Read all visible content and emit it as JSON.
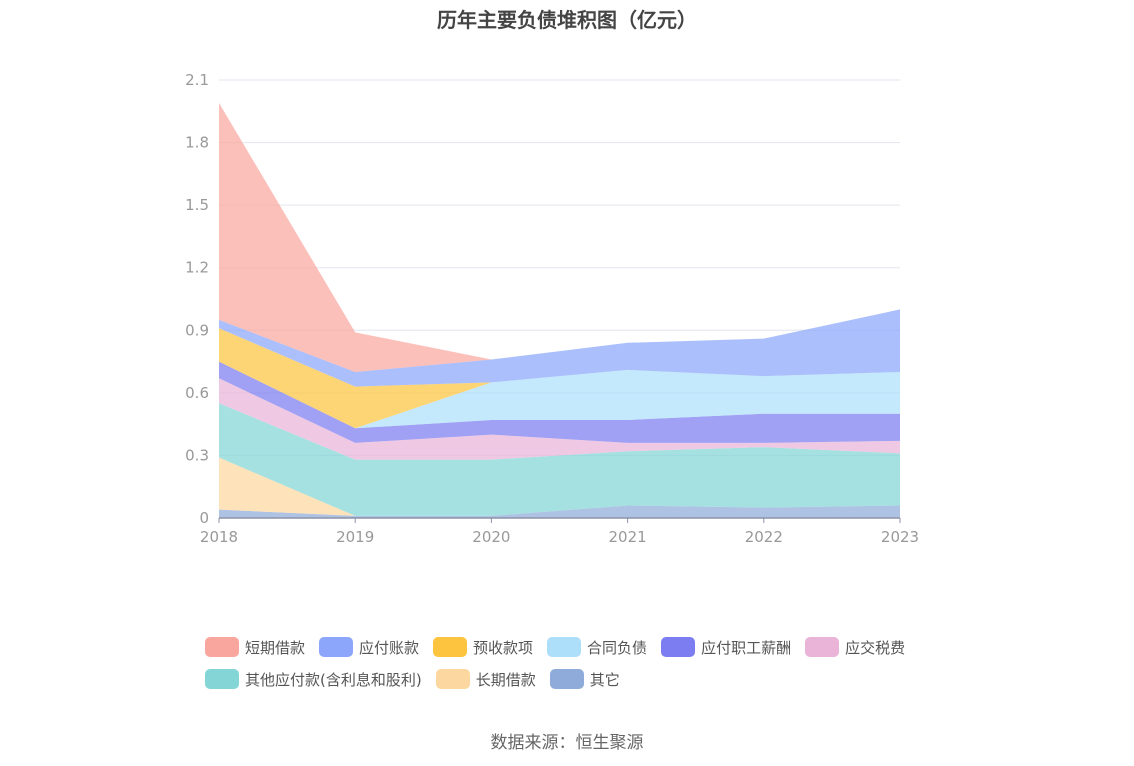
{
  "title": "历年主要负债堆积图（亿元）",
  "source": "数据来源：恒生聚源",
  "colors": {
    "短期借款": "#f9a79e",
    "应付账款": "#8ba6fb",
    "预收款项": "#fdc53f",
    "合同负债": "#addffb",
    "应付职工薪酬": "#7c7df0",
    "应交税费": "#e9b4d8",
    "其他应付款(含利息和股利)": "#84d6d6",
    "长期借款": "#fdd7a0",
    "其它": "#8fabd9"
  },
  "chart_data": {
    "type": "area",
    "stacked": true,
    "title": "历年主要负债堆积图（亿元）",
    "x": [
      "2018",
      "2019",
      "2020",
      "2021",
      "2022",
      "2023"
    ],
    "y_ticks": [
      "0",
      "0.3",
      "0.6",
      "0.9",
      "1.2",
      "1.5",
      "1.8",
      "2.1"
    ],
    "ylim": [
      0,
      2.1
    ],
    "grid": true,
    "legend_position": "bottom",
    "series": [
      {
        "name": "其它",
        "values": [
          0.04,
          0.01,
          0.01,
          0.06,
          0.05,
          0.06
        ]
      },
      {
        "name": "长期借款",
        "values": [
          0.25,
          0.0,
          0.0,
          0.0,
          0.0,
          0.0
        ]
      },
      {
        "name": "其他应付款(含利息和股利)",
        "values": [
          0.26,
          0.27,
          0.27,
          0.26,
          0.29,
          0.25
        ]
      },
      {
        "name": "应交税费",
        "values": [
          0.12,
          0.08,
          0.12,
          0.04,
          0.02,
          0.06
        ]
      },
      {
        "name": "应付职工薪酬",
        "values": [
          0.08,
          0.07,
          0.07,
          0.11,
          0.14,
          0.13
        ]
      },
      {
        "name": "合同负债",
        "values": [
          0.0,
          0.0,
          0.18,
          0.24,
          0.18,
          0.2
        ]
      },
      {
        "name": "预收款项",
        "values": [
          0.16,
          0.2,
          0.0,
          0.0,
          0.0,
          0.0
        ]
      },
      {
        "name": "应付账款",
        "values": [
          0.04,
          0.07,
          0.11,
          0.13,
          0.18,
          0.3
        ]
      },
      {
        "name": "短期借款",
        "values": [
          1.04,
          0.19,
          0.0,
          0.0,
          0.0,
          0.0
        ]
      }
    ]
  },
  "legend_rows": [
    [
      "短期借款",
      "应付账款",
      "预收款项",
      "合同负债",
      "应付职工薪酬",
      "应交税费"
    ],
    [
      "其他应付款(含利息和股利)",
      "长期借款",
      "其它"
    ]
  ]
}
